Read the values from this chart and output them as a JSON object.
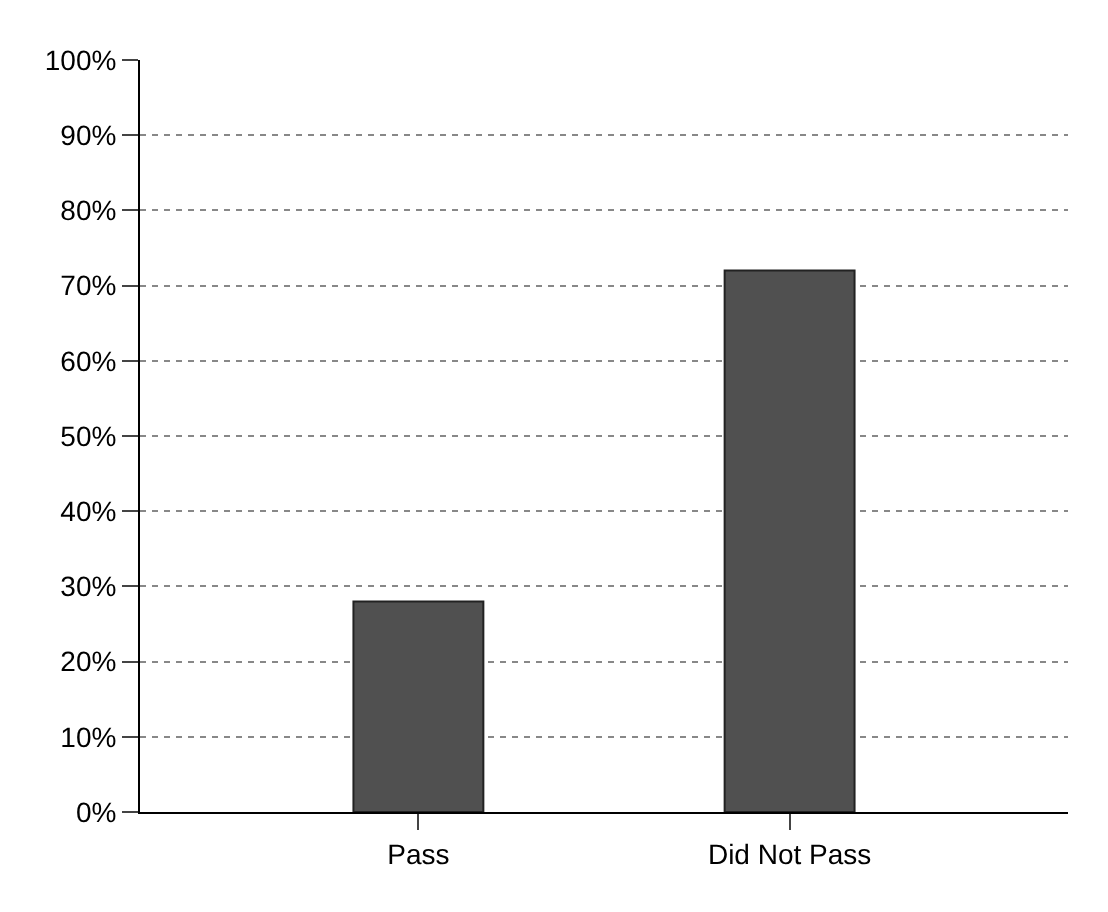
{
  "chart_data": {
    "type": "bar",
    "categories": [
      "Pass",
      "Did Not Pass"
    ],
    "values": [
      28,
      72
    ],
    "color": "#505050",
    "ylim": [
      0,
      100
    ],
    "yticks": [
      {
        "value": 0,
        "label": "0%"
      },
      {
        "value": 10,
        "label": "10%"
      },
      {
        "value": 20,
        "label": "20%"
      },
      {
        "value": 30,
        "label": "30%"
      },
      {
        "value": 40,
        "label": "40%"
      },
      {
        "value": 50,
        "label": "50%"
      },
      {
        "value": 60,
        "label": "60%"
      },
      {
        "value": 70,
        "label": "70%"
      },
      {
        "value": 80,
        "label": "80%"
      },
      {
        "value": 90,
        "label": "90%"
      },
      {
        "value": 100,
        "label": "100%"
      }
    ],
    "grid": "y",
    "line_style": "dotted"
  }
}
